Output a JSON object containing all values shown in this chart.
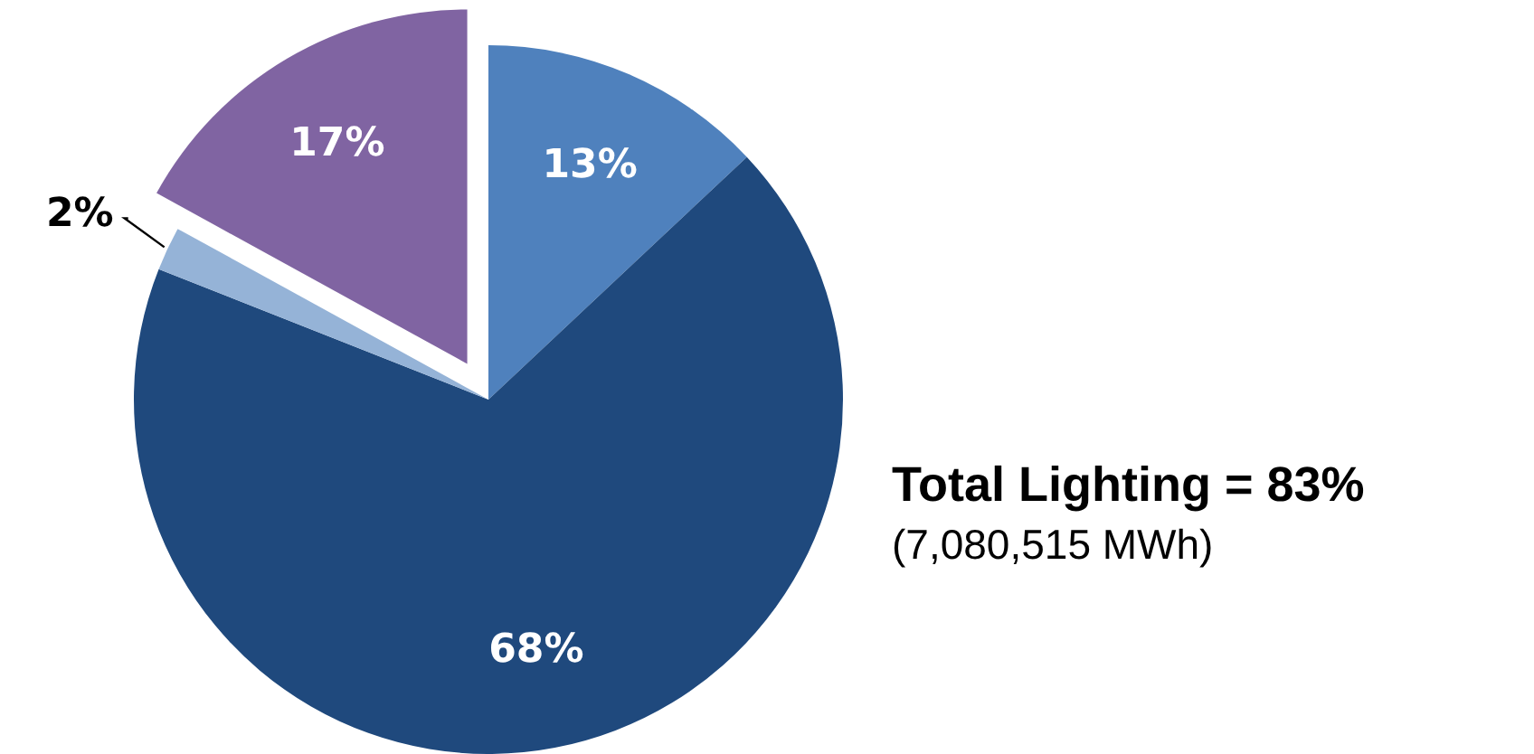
{
  "chart_data": {
    "type": "pie",
    "categories": [
      null,
      null,
      null,
      null
    ],
    "values": [
      13,
      68,
      2,
      17
    ],
    "colors": [
      "#4f81bd",
      "#1f497d",
      "#95b3d7",
      "#8064a2"
    ],
    "value_labels": [
      "13%",
      "68%",
      "2%",
      "17%"
    ],
    "annotations": [
      "Total Lighting = 83%",
      "(7,080,515 MWh)"
    ]
  }
}
